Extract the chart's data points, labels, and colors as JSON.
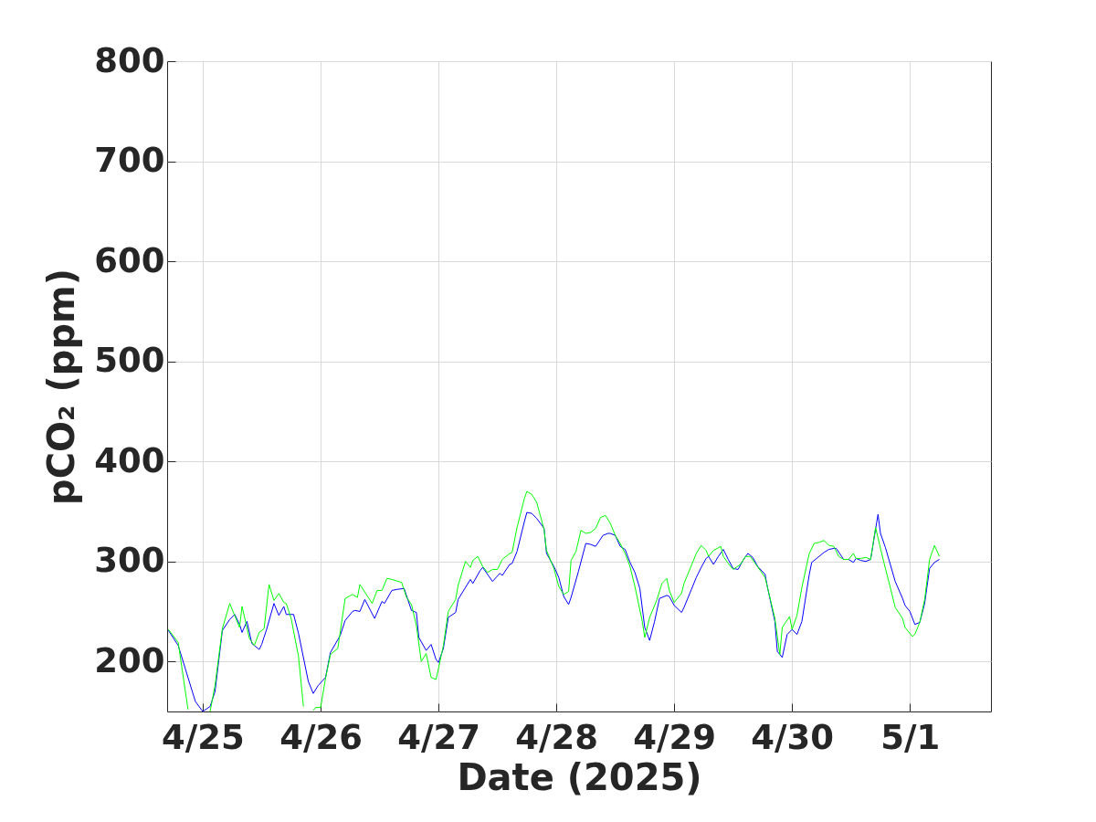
{
  "chart_data": {
    "type": "line",
    "xlabel": "Date (2025)",
    "ylabel": "pCO₂ (ppm)",
    "xlim": [
      "2025-04-24T16:45",
      "2025-05-01T16:30"
    ],
    "ylim": [
      150,
      800
    ],
    "yticks": [
      200,
      300,
      400,
      500,
      600,
      700,
      800
    ],
    "xticks": [
      {
        "value": "2025-04-25",
        "label": "4/25"
      },
      {
        "value": "2025-04-26",
        "label": "4/26"
      },
      {
        "value": "2025-04-27",
        "label": "4/27"
      },
      {
        "value": "2025-04-28",
        "label": "4/28"
      },
      {
        "value": "2025-04-29",
        "label": "4/29"
      },
      {
        "value": "2025-04-30",
        "label": "4/30"
      },
      {
        "value": "2025-05-01",
        "label": "5/1"
      }
    ],
    "grid": true,
    "series": [
      {
        "color": "#0000ff",
        "x": [
          "2025-04-24T17:00",
          "2025-04-24T19:00",
          "2025-04-24T20:30",
          "2025-04-24T22:30",
          "2025-04-25T00:00",
          "2025-04-25T01:30",
          "2025-04-25T02:30",
          "2025-04-25T04:00",
          "2025-04-25T05:30",
          "2025-04-25T06:30",
          "2025-04-25T07:30",
          "2025-04-25T08:00",
          "2025-04-25T09:00",
          "2025-04-25T10:00",
          "2025-04-25T11:30",
          "2025-04-25T12:00",
          "2025-04-25T13:00",
          "2025-04-25T14:30",
          "2025-04-25T15:30",
          "2025-04-25T16:30",
          "2025-04-25T17:00",
          "2025-04-25T18:30",
          "2025-04-25T19:30",
          "2025-04-25T21:30",
          "2025-04-25T22:30",
          "2025-04-25T23:30",
          "2025-04-26T01:00",
          "2025-04-26T02:00",
          "2025-04-26T04:00",
          "2025-04-26T05:00",
          "2025-04-26T06:30",
          "2025-04-26T07:00",
          "2025-04-26T08:00",
          "2025-04-26T09:00",
          "2025-04-26T11:00",
          "2025-04-26T12:30",
          "2025-04-26T13:00",
          "2025-04-26T14:30",
          "2025-04-26T15:30",
          "2025-04-26T17:00",
          "2025-04-26T18:30",
          "2025-04-26T19:30",
          "2025-04-26T20:00",
          "2025-04-26T21:30",
          "2025-04-26T22:30",
          "2025-04-26T23:30",
          "2025-04-27T00:00",
          "2025-04-27T01:00",
          "2025-04-27T02:00",
          "2025-04-27T03:30",
          "2025-04-27T04:00",
          "2025-04-27T05:30",
          "2025-04-27T06:30",
          "2025-04-27T07:00",
          "2025-04-27T08:30",
          "2025-04-27T09:00",
          "2025-04-27T10:00",
          "2025-04-27T11:00",
          "2025-04-27T12:30",
          "2025-04-27T13:00",
          "2025-04-27T14:30",
          "2025-04-27T15:00",
          "2025-04-27T16:00",
          "2025-04-27T17:30",
          "2025-04-27T18:00",
          "2025-04-27T19:00",
          "2025-04-27T20:00",
          "2025-04-27T21:30",
          "2025-04-27T22:00",
          "2025-04-27T23:30",
          "2025-04-28T00:30",
          "2025-04-28T01:30",
          "2025-04-28T02:30",
          "2025-04-28T03:00",
          "2025-04-28T04:30",
          "2025-04-28T06:00",
          "2025-04-28T07:00",
          "2025-04-28T08:00",
          "2025-04-28T09:30",
          "2025-04-28T10:30",
          "2025-04-28T11:00",
          "2025-04-28T12:00",
          "2025-04-28T13:00",
          "2025-04-28T14:00",
          "2025-04-28T15:00",
          "2025-04-28T16:00",
          "2025-04-28T17:00",
          "2025-04-28T18:00",
          "2025-04-28T19:00",
          "2025-04-28T20:00",
          "2025-04-28T21:00",
          "2025-04-28T22:30",
          "2025-04-28T23:00",
          "2025-04-29T00:00",
          "2025-04-29T01:30",
          "2025-04-29T02:00",
          "2025-04-29T03:30",
          "2025-04-29T04:30",
          "2025-04-29T05:30",
          "2025-04-29T06:30",
          "2025-04-29T07:00",
          "2025-04-29T08:00",
          "2025-04-29T09:00",
          "2025-04-29T10:00",
          "2025-04-29T11:00",
          "2025-04-29T12:00",
          "2025-04-29T13:00",
          "2025-04-29T14:00",
          "2025-04-29T15:00",
          "2025-04-29T16:00",
          "2025-04-29T17:00",
          "2025-04-29T18:30",
          "2025-04-29T19:00",
          "2025-04-29T20:30",
          "2025-04-29T21:00",
          "2025-04-29T22:00",
          "2025-04-29T23:00",
          "2025-04-30T00:00",
          "2025-04-30T01:00",
          "2025-04-30T02:00",
          "2025-04-30T03:30",
          "2025-04-30T04:00",
          "2025-04-30T05:30",
          "2025-04-30T06:30",
          "2025-04-30T07:30",
          "2025-04-30T08:30",
          "2025-04-30T09:00",
          "2025-04-30T10:30",
          "2025-04-30T11:30",
          "2025-04-30T12:30",
          "2025-04-30T13:00",
          "2025-04-30T14:00",
          "2025-04-30T15:00",
          "2025-04-30T16:00",
          "2025-04-30T17:30",
          "2025-04-30T18:00",
          "2025-04-30T19:00",
          "2025-04-30T20:00",
          "2025-04-30T21:00",
          "2025-04-30T22:30",
          "2025-04-30T23:00",
          "2025-05-01T00:00",
          "2025-05-01T01:00",
          "2025-05-01T02:00",
          "2025-05-01T03:00",
          "2025-05-01T04:00",
          "2025-05-01T05:00",
          "2025-05-01T06:00"
        ],
        "values": [
          231,
          216,
          192,
          160,
          150,
          155,
          170,
          231,
          242,
          247,
          237,
          229,
          240,
          218,
          212,
          217,
          232,
          258,
          246,
          255,
          247,
          247,
          228,
          180,
          168,
          176,
          184,
          209,
          226,
          241,
          250,
          251,
          250,
          262,
          243,
          260,
          258,
          271,
          272,
          273,
          251,
          249,
          224,
          211,
          217,
          202,
          199,
          213,
          244,
          249,
          262,
          274,
          282,
          278,
          291,
          294,
          287,
          280,
          288,
          286,
          297,
          298,
          310,
          340,
          349,
          348,
          343,
          333,
          308,
          295,
          284,
          265,
          257,
          264,
          290,
          318,
          317,
          315,
          326,
          328,
          328,
          326,
          315,
          312,
          299,
          289,
          273,
          234,
          221,
          240,
          263,
          266,
          265,
          256,
          249,
          254,
          272,
          284,
          294,
          303,
          305,
          297,
          305,
          312,
          302,
          293,
          292,
          301,
          308,
          304,
          295,
          287,
          274,
          240,
          210,
          204,
          227,
          232,
          227,
          240,
          287,
          299,
          305,
          309,
          312,
          313,
          313,
          302,
          302,
          299,
          303,
          301,
          300,
          302,
          347,
          328,
          314,
          297,
          280,
          263,
          256,
          250,
          237,
          239,
          258,
          293,
          299,
          302
        ]
      },
      {
        "color": "#00ff00",
        "x": [
          "2025-04-24T17:00",
          "2025-04-24T19:00",
          "2025-04-24T21:00",
          "2025-04-24T22:00",
          "2025-04-25T01:30",
          "2025-04-25T02:30",
          "2025-04-25T04:00",
          "2025-04-25T05:30",
          "2025-04-25T06:30",
          "2025-04-25T07:30",
          "2025-04-25T08:00",
          "2025-04-25T09:30",
          "2025-04-25T10:30",
          "2025-04-25T11:30",
          "2025-04-25T12:30",
          "2025-04-25T13:30",
          "2025-04-25T14:30",
          "2025-04-25T15:30",
          "2025-04-25T16:30",
          "2025-04-25T17:00",
          "2025-04-25T18:00",
          "2025-04-25T19:30",
          "2025-04-25T20:30",
          "2025-04-25T21:30",
          "2025-04-25T22:30",
          "2025-04-25T23:00",
          "2025-04-26T00:00",
          "2025-04-26T01:00",
          "2025-04-26T02:00",
          "2025-04-26T03:30",
          "2025-04-26T05:00",
          "2025-04-26T06:30",
          "2025-04-26T07:30",
          "2025-04-26T08:00",
          "2025-04-26T10:30",
          "2025-04-26T11:30",
          "2025-04-26T12:30",
          "2025-04-26T13:30",
          "2025-04-26T14:30",
          "2025-04-26T16:30",
          "2025-04-26T17:30",
          "2025-04-26T18:30",
          "2025-04-26T19:30",
          "2025-04-26T20:30",
          "2025-04-26T21:30",
          "2025-04-26T22:30",
          "2025-04-26T23:30",
          "2025-04-27T00:00",
          "2025-04-27T01:00",
          "2025-04-27T02:00",
          "2025-04-27T03:30",
          "2025-04-27T04:00",
          "2025-04-27T05:30",
          "2025-04-27T06:30",
          "2025-04-27T07:00",
          "2025-04-27T08:00",
          "2025-04-27T09:00",
          "2025-04-27T10:00",
          "2025-04-27T11:00",
          "2025-04-27T12:00",
          "2025-04-27T13:00",
          "2025-04-27T14:30",
          "2025-04-27T15:00",
          "2025-04-27T16:00",
          "2025-04-27T17:30",
          "2025-04-27T18:00",
          "2025-04-27T19:00",
          "2025-04-27T20:00",
          "2025-04-27T21:30",
          "2025-04-27T22:00",
          "2025-04-27T23:30",
          "2025-04-28T00:30",
          "2025-04-28T01:30",
          "2025-04-28T02:30",
          "2025-04-28T03:00",
          "2025-04-28T04:00",
          "2025-04-28T05:00",
          "2025-04-28T06:00",
          "2025-04-28T07:00",
          "2025-04-28T08:00",
          "2025-04-28T09:00",
          "2025-04-28T10:00",
          "2025-04-28T11:00",
          "2025-04-28T12:00",
          "2025-04-28T13:00",
          "2025-04-28T14:00",
          "2025-04-28T15:00",
          "2025-04-28T16:00",
          "2025-04-28T17:30",
          "2025-04-28T18:00",
          "2025-04-28T19:00",
          "2025-04-28T20:30",
          "2025-04-28T21:30",
          "2025-04-28T22:30",
          "2025-04-28T23:00",
          "2025-04-29T00:00",
          "2025-04-29T01:30",
          "2025-04-29T02:00",
          "2025-04-29T03:30",
          "2025-04-29T04:30",
          "2025-04-29T05:30",
          "2025-04-29T06:30",
          "2025-04-29T07:00",
          "2025-04-29T08:00",
          "2025-04-29T09:30",
          "2025-04-29T10:00",
          "2025-04-29T11:00",
          "2025-04-29T12:00",
          "2025-04-29T13:30",
          "2025-04-29T14:30",
          "2025-04-29T15:30",
          "2025-04-29T16:30",
          "2025-04-29T17:30",
          "2025-04-29T18:30",
          "2025-04-29T19:00",
          "2025-04-29T20:30",
          "2025-04-29T21:30",
          "2025-04-29T22:00",
          "2025-04-29T23:30",
          "2025-04-30T00:00",
          "2025-04-30T01:00",
          "2025-04-30T02:00",
          "2025-04-30T03:30",
          "2025-04-30T04:30",
          "2025-04-30T05:30",
          "2025-04-30T06:30",
          "2025-04-30T07:30",
          "2025-04-30T08:30",
          "2025-04-30T09:30",
          "2025-04-30T10:30",
          "2025-04-30T11:30",
          "2025-04-30T12:30",
          "2025-04-30T13:00",
          "2025-04-30T14:00",
          "2025-04-30T15:00",
          "2025-04-30T16:00",
          "2025-04-30T17:00",
          "2025-04-30T18:00",
          "2025-04-30T19:00",
          "2025-04-30T20:00",
          "2025-04-30T21:00",
          "2025-04-30T22:30",
          "2025-04-30T23:00",
          "2025-05-01T00:30",
          "2025-05-01T01:00",
          "2025-05-01T02:00",
          "2025-05-01T03:00",
          "2025-05-01T04:00",
          "2025-05-01T05:00",
          "2025-05-01T06:00"
        ],
        "values": [
          232,
          219,
          152,
          null,
          150,
          176,
          233,
          258,
          246,
          234,
          255,
          223,
          216,
          229,
          233,
          277,
          261,
          268,
          259,
          258,
          243,
          205,
          155,
          null,
          151,
          154,
          154,
          183,
          207,
          213,
          263,
          267,
          264,
          277,
          258,
          271,
          271,
          283,
          282,
          279,
          264,
          257,
          236,
          200,
          208,
          184,
          182,
          193,
          216,
          250,
          262,
          276,
          300,
          294,
          301,
          305,
          295,
          289,
          292,
          292,
          302,
          308,
          309,
          334,
          363,
          370,
          367,
          359,
          332,
          311,
          293,
          275,
          267,
          270,
          301,
          310,
          331,
          328,
          329,
          333,
          344,
          346,
          338,
          326,
          318,
          308,
          295,
          275,
          240,
          224,
          244,
          262,
          278,
          283,
          271,
          259,
          268,
          278,
          296,
          308,
          316,
          311,
          305,
          311,
          315,
          305,
          298,
          292,
          297,
          305,
          305,
          298,
          291,
          284,
          274,
          243,
          207,
          234,
          245,
          232,
          246,
          274,
          308,
          318,
          319,
          321,
          316,
          315,
          305,
          302,
          302,
          308,
          303,
          303,
          304,
          302,
          334,
          313,
          293,
          274,
          254,
          243,
          234,
          225,
          227,
          239,
          262,
          302,
          316,
          305
        ]
      }
    ]
  }
}
